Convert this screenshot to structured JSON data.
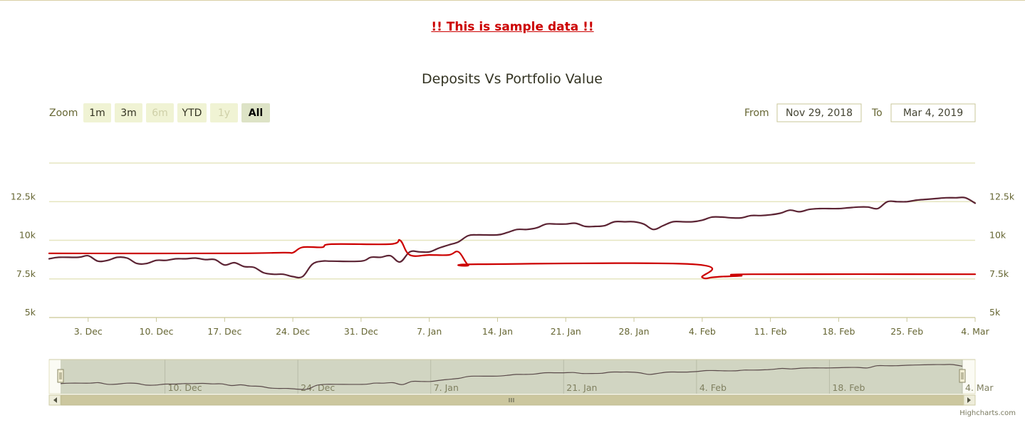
{
  "page": {
    "notice": "!! This is sample data !!"
  },
  "range_selector": {
    "zoom_label": "Zoom",
    "buttons": [
      {
        "label": "1m",
        "state": "normal"
      },
      {
        "label": "3m",
        "state": "normal"
      },
      {
        "label": "6m",
        "state": "disabled"
      },
      {
        "label": "YTD",
        "state": "normal"
      },
      {
        "label": "1y",
        "state": "disabled"
      },
      {
        "label": "All",
        "state": "selected"
      }
    ],
    "from_label": "From",
    "from_value": "Nov 29, 2018",
    "to_label": "To",
    "to_value": "Mar 4, 2019"
  },
  "credit": "Highcharts.com",
  "colors": {
    "portfolio": "#5c2434",
    "deposits": "#cc0000",
    "grid": "#e6e6c0",
    "axis_text": "#666633",
    "navigator_mask": "#c9ceb9",
    "scrollbar": "#ccc79f",
    "button_bg": "#f0f3d4",
    "button_selected_bg": "#dde3c6"
  },
  "chart_data": {
    "type": "line",
    "title": "Deposits Vs Portfolio Value",
    "x_range": [
      "2018-11-29",
      "2019-03-04"
    ],
    "y_range": [
      5000,
      15000
    ],
    "y_ticks": [
      5000,
      7500,
      10000,
      12500,
      15000
    ],
    "y_tick_labels": [
      "5k",
      "7.5k",
      "10k",
      "12.5k",
      ""
    ],
    "x_ticks": [
      {
        "date": "2018-12-03",
        "label": "3. Dec"
      },
      {
        "date": "2018-12-10",
        "label": "10. Dec"
      },
      {
        "date": "2018-12-17",
        "label": "17. Dec"
      },
      {
        "date": "2018-12-24",
        "label": "24. Dec"
      },
      {
        "date": "2018-12-31",
        "label": "31. Dec"
      },
      {
        "date": "2019-01-07",
        "label": "7. Jan"
      },
      {
        "date": "2019-01-14",
        "label": "14. Jan"
      },
      {
        "date": "2019-01-21",
        "label": "21. Jan"
      },
      {
        "date": "2019-01-28",
        "label": "28. Jan"
      },
      {
        "date": "2019-02-04",
        "label": "4. Feb"
      },
      {
        "date": "2019-02-11",
        "label": "11. Feb"
      },
      {
        "date": "2019-02-18",
        "label": "18. Feb"
      },
      {
        "date": "2019-02-25",
        "label": "25. Feb"
      },
      {
        "date": "2019-03-04",
        "label": "4. Mar"
      }
    ],
    "navigator_x_ticks": [
      {
        "date": "2018-12-10",
        "label": "10. Dec"
      },
      {
        "date": "2018-12-24",
        "label": "24. Dec"
      },
      {
        "date": "2019-01-07",
        "label": "7. Jan"
      },
      {
        "date": "2019-01-21",
        "label": "21. Jan"
      },
      {
        "date": "2019-02-04",
        "label": "4. Feb"
      },
      {
        "date": "2019-02-18",
        "label": "18. Feb"
      },
      {
        "date": "2019-03-04",
        "label": "4. Mar"
      }
    ],
    "series": [
      {
        "color": "#5c2434",
        "points": [
          [
            "2018-11-29",
            8800
          ],
          [
            "2018-11-30",
            8900
          ],
          [
            "2018-12-02",
            8900
          ],
          [
            "2018-12-03",
            9000
          ],
          [
            "2018-12-04",
            8650
          ],
          [
            "2018-12-05",
            8700
          ],
          [
            "2018-12-06",
            8900
          ],
          [
            "2018-12-07",
            8850
          ],
          [
            "2018-12-08",
            8500
          ],
          [
            "2018-12-09",
            8500
          ],
          [
            "2018-12-10",
            8700
          ],
          [
            "2018-12-11",
            8700
          ],
          [
            "2018-12-12",
            8800
          ],
          [
            "2018-12-13",
            8800
          ],
          [
            "2018-12-14",
            8850
          ],
          [
            "2018-12-15",
            8750
          ],
          [
            "2018-12-16",
            8750
          ],
          [
            "2018-12-17",
            8400
          ],
          [
            "2018-12-18",
            8550
          ],
          [
            "2018-12-19",
            8300
          ],
          [
            "2018-12-20",
            8250
          ],
          [
            "2018-12-21",
            7900
          ],
          [
            "2018-12-22",
            7800
          ],
          [
            "2018-12-23",
            7800
          ],
          [
            "2018-12-24",
            7650
          ],
          [
            "2018-12-25",
            7650
          ],
          [
            "2018-12-26",
            8450
          ],
          [
            "2018-12-27",
            8650
          ],
          [
            "2018-12-28",
            8650
          ],
          [
            "2018-12-31",
            8650
          ],
          [
            "2019-01-01",
            8900
          ],
          [
            "2019-01-02",
            8900
          ],
          [
            "2019-01-03",
            9000
          ],
          [
            "2019-01-04",
            8600
          ],
          [
            "2019-01-05",
            9250
          ],
          [
            "2019-01-06",
            9250
          ],
          [
            "2019-01-07",
            9250
          ],
          [
            "2019-01-08",
            9500
          ],
          [
            "2019-01-09",
            9700
          ],
          [
            "2019-01-10",
            9900
          ],
          [
            "2019-01-11",
            10300
          ],
          [
            "2019-01-12",
            10350
          ],
          [
            "2019-01-14",
            10350
          ],
          [
            "2019-01-15",
            10500
          ],
          [
            "2019-01-16",
            10700
          ],
          [
            "2019-01-17",
            10700
          ],
          [
            "2019-01-18",
            10800
          ],
          [
            "2019-01-19",
            11050
          ],
          [
            "2019-01-20",
            11050
          ],
          [
            "2019-01-21",
            11050
          ],
          [
            "2019-01-22",
            11100
          ],
          [
            "2019-01-23",
            10900
          ],
          [
            "2019-01-24",
            10900
          ],
          [
            "2019-01-25",
            10950
          ],
          [
            "2019-01-26",
            11200
          ],
          [
            "2019-01-27",
            11200
          ],
          [
            "2019-01-28",
            11200
          ],
          [
            "2019-01-29",
            11050
          ],
          [
            "2019-01-30",
            10700
          ],
          [
            "2019-01-31",
            10950
          ],
          [
            "2019-02-01",
            11200
          ],
          [
            "2019-02-02",
            11200
          ],
          [
            "2019-02-03",
            11200
          ],
          [
            "2019-02-04",
            11300
          ],
          [
            "2019-02-05",
            11500
          ],
          [
            "2019-02-06",
            11500
          ],
          [
            "2019-02-07",
            11450
          ],
          [
            "2019-02-08",
            11450
          ],
          [
            "2019-02-09",
            11600
          ],
          [
            "2019-02-10",
            11600
          ],
          [
            "2019-02-11",
            11650
          ],
          [
            "2019-02-12",
            11750
          ],
          [
            "2019-02-13",
            11950
          ],
          [
            "2019-02-14",
            11850
          ],
          [
            "2019-02-15",
            12000
          ],
          [
            "2019-02-16",
            12050
          ],
          [
            "2019-02-17",
            12050
          ],
          [
            "2019-02-18",
            12050
          ],
          [
            "2019-02-19",
            12100
          ],
          [
            "2019-02-20",
            12150
          ],
          [
            "2019-02-21",
            12150
          ],
          [
            "2019-02-22",
            12050
          ],
          [
            "2019-02-23",
            12500
          ],
          [
            "2019-02-24",
            12500
          ],
          [
            "2019-02-25",
            12500
          ],
          [
            "2019-02-26",
            12600
          ],
          [
            "2019-02-27",
            12650
          ],
          [
            "2019-02-28",
            12700
          ],
          [
            "2019-03-01",
            12750
          ],
          [
            "2019-03-02",
            12750
          ],
          [
            "2019-03-03",
            12750
          ],
          [
            "2019-03-04",
            12400
          ]
        ]
      },
      {
        "color": "#cc0000",
        "points": [
          [
            "2018-11-29",
            9150
          ],
          [
            "2018-12-17",
            9150
          ],
          [
            "2018-12-23",
            9200
          ],
          [
            "2018-12-24",
            9200
          ],
          [
            "2018-12-25",
            9550
          ],
          [
            "2018-12-27",
            9550
          ],
          [
            "2018-12-28",
            9750
          ],
          [
            "2019-01-03",
            9750
          ],
          [
            "2019-01-04",
            10000
          ],
          [
            "2019-01-05",
            9050
          ],
          [
            "2019-01-07",
            9050
          ],
          [
            "2019-01-09",
            9050
          ],
          [
            "2019-01-10",
            9250
          ],
          [
            "2019-01-11",
            8400
          ],
          [
            "2019-01-12",
            8450
          ],
          [
            "2019-02-03",
            8450
          ],
          [
            "2019-02-04",
            7600
          ],
          [
            "2019-02-05",
            7600
          ],
          [
            "2019-02-06",
            7650
          ],
          [
            "2019-02-08",
            7700
          ],
          [
            "2019-02-09",
            7800
          ],
          [
            "2019-03-04",
            7800
          ]
        ]
      }
    ]
  }
}
